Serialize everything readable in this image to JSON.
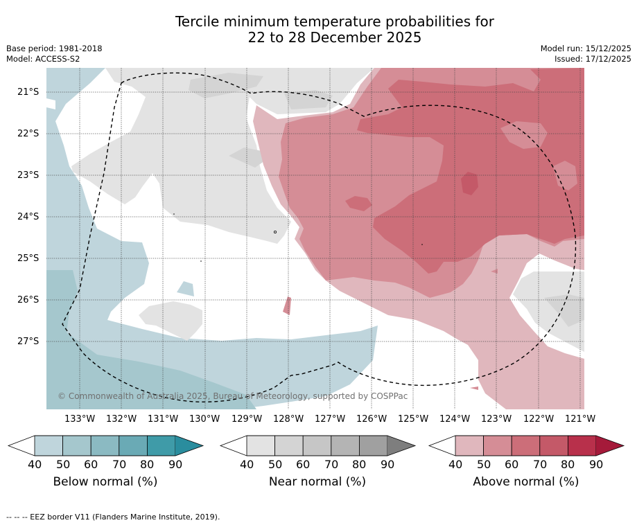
{
  "title": {
    "line1": "Tercile minimum temperature probabilities for",
    "line2": "22 to 28 December 2025"
  },
  "meta": {
    "base_period": "Base period: 1981-2018",
    "model": "Model: ACCESS-S2",
    "model_run": "Model run: 15/12/2025",
    "issued": "Issued: 17/12/2025"
  },
  "map": {
    "copyright": "© Commonwealth of Australia 2025, Bureau of Meteorology, supported by COSPPac",
    "lat_labels": [
      "21°S",
      "22°S",
      "23°S",
      "24°S",
      "25°S",
      "26°S",
      "27°S"
    ],
    "lon_labels": [
      "133°W",
      "132°W",
      "131°W",
      "130°W",
      "129°W",
      "128°W",
      "127°W",
      "126°W",
      "125°W",
      "124°W",
      "123°W",
      "122°W",
      "121°W"
    ]
  },
  "colorbars": [
    {
      "title": "Below normal (%)",
      "ticks": [
        "40",
        "50",
        "60",
        "70",
        "80",
        "90"
      ],
      "colors": [
        "#bfd5dc",
        "#a5c7cd",
        "#8bbac2",
        "#6aaab5",
        "#3f9ba8",
        "#2a8d9e"
      ]
    },
    {
      "title": "Near normal (%)",
      "ticks": [
        "40",
        "50",
        "60",
        "70",
        "80",
        "90"
      ],
      "colors": [
        "#e3e3e3",
        "#d4d4d4",
        "#c6c6c6",
        "#b4b4b4",
        "#a0a0a0",
        "#7e7e7e"
      ]
    },
    {
      "title": "Above normal (%)",
      "ticks": [
        "40",
        "50",
        "60",
        "70",
        "80",
        "90"
      ],
      "colors": [
        "#e0b7bd",
        "#d58d96",
        "#cc6e79",
        "#c45968",
        "#b8304b",
        "#a51a3a"
      ]
    }
  ],
  "footnote": "--  --  -- EEZ border V11 (Flanders Marine Institute, 2019)."
}
